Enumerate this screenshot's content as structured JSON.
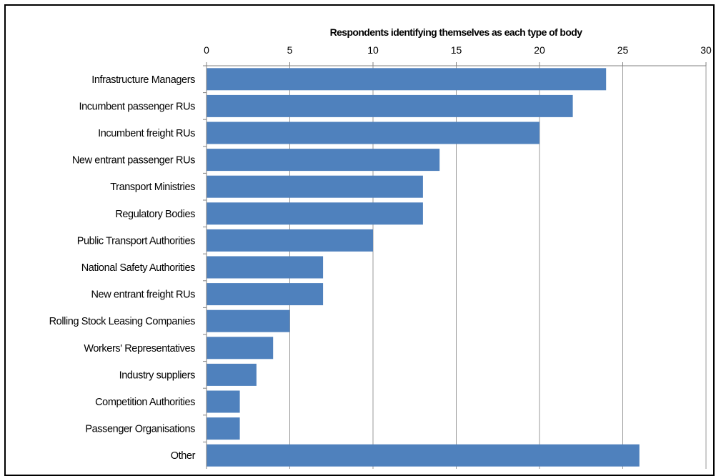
{
  "chart_data": {
    "type": "bar",
    "orientation": "horizontal",
    "title": "Respondents identifying themselves as each type of body",
    "xlabel": "",
    "ylabel": "",
    "xlim": [
      0,
      30
    ],
    "x_ticks": [
      0,
      5,
      10,
      15,
      20,
      25,
      30
    ],
    "x_axis_position": "top",
    "grid": true,
    "legend": "none",
    "bar_color": "#4F81BD",
    "categories": [
      "Infrastructure Managers",
      "Incumbent passenger RUs",
      "Incumbent freight RUs",
      "New entrant passenger RUs",
      "Transport Ministries",
      "Regulatory Bodies",
      "Public Transport Authorities",
      "National Safety Authorities",
      "New entrant freight RUs",
      "Rolling Stock Leasing Companies",
      "Workers' Representatives",
      "Industry suppliers",
      "Competition Authorities",
      "Passenger Organisations",
      "Other"
    ],
    "values": [
      24,
      22,
      20,
      14,
      13,
      13,
      10,
      7,
      7,
      5,
      4,
      3,
      2,
      2,
      26
    ]
  }
}
